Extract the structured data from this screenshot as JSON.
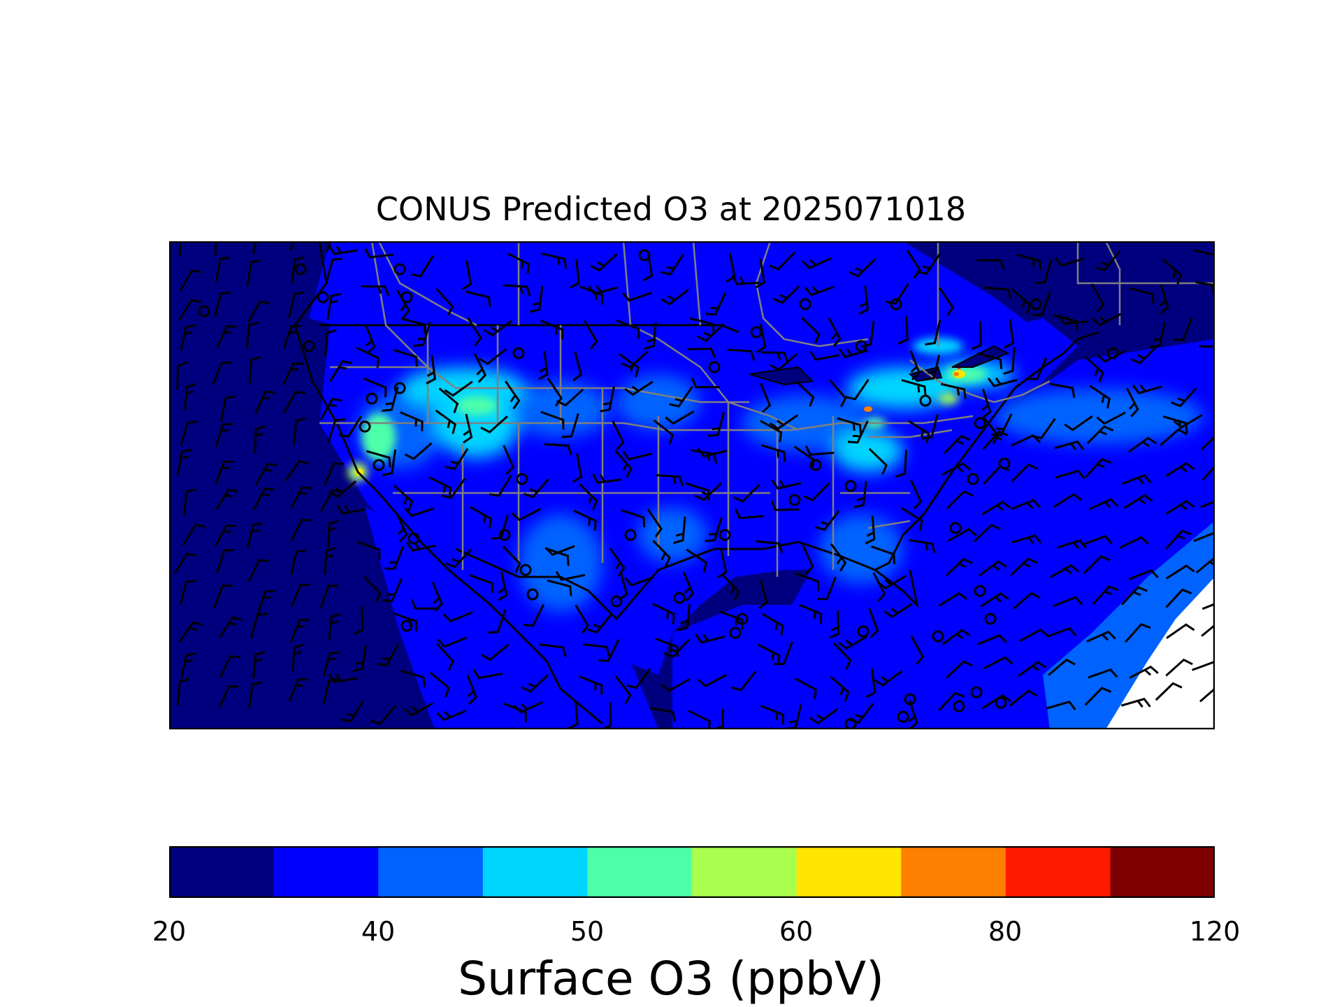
{
  "title": "CONUS Predicted O3 at 2025071018",
  "map": {
    "region": "CONUS",
    "field": "Surface O3",
    "overlays": [
      "wind-barbs",
      "station-circles",
      "state-borders",
      "coastlines"
    ],
    "colors": {
      "background": "#000070",
      "land": "#0000e8",
      "border": "#808080",
      "coast": "#000000"
    }
  },
  "colorbar": {
    "label": "Surface O3 (ppbV)",
    "levels": [
      20,
      30,
      40,
      45,
      50,
      55,
      60,
      70,
      80,
      100,
      120
    ],
    "tick_labels": [
      "20",
      "40",
      "50",
      "60",
      "80",
      "120"
    ],
    "colors": [
      "#00007f",
      "#0000ff",
      "#0063ff",
      "#00d5ff",
      "#4effa9",
      "#a9ff4e",
      "#ffe500",
      "#ff7f00",
      "#ff1a00",
      "#7f0000"
    ]
  }
}
